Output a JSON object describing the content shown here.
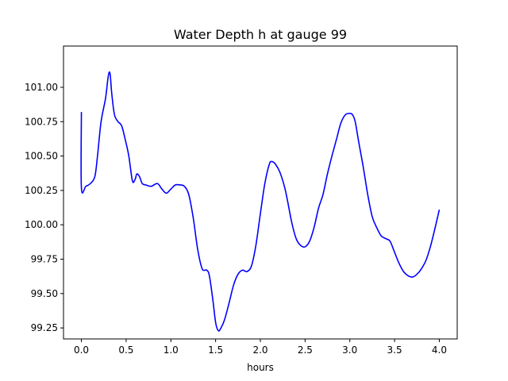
{
  "chart_data": {
    "type": "line",
    "title": "Water Depth h at gauge 99",
    "xlabel": "hours",
    "ylabel": "",
    "xlim": [
      -0.2,
      4.2
    ],
    "ylim": [
      99.17,
      101.3
    ],
    "xticks": [
      0.0,
      0.5,
      1.0,
      1.5,
      2.0,
      2.5,
      3.0,
      3.5,
      4.0
    ],
    "xtick_labels": [
      "0.0",
      "0.5",
      "1.0",
      "1.5",
      "2.0",
      "2.5",
      "3.0",
      "3.5",
      "4.0"
    ],
    "yticks": [
      99.25,
      99.5,
      99.75,
      100.0,
      100.25,
      100.5,
      100.75,
      101.0
    ],
    "ytick_labels": [
      "99.25",
      "99.50",
      "99.75",
      "100.00",
      "100.25",
      "100.50",
      "100.75",
      "101.00"
    ],
    "grid": false,
    "series": [
      {
        "color": "#0000ff",
        "x": [
          0.0,
          0.0,
          0.05,
          0.1,
          0.15,
          0.18,
          0.22,
          0.27,
          0.3,
          0.32,
          0.34,
          0.37,
          0.41,
          0.45,
          0.49,
          0.53,
          0.57,
          0.6,
          0.62,
          0.65,
          0.68,
          0.72,
          0.78,
          0.85,
          0.9,
          0.95,
          1.0,
          1.05,
          1.1,
          1.15,
          1.2,
          1.25,
          1.3,
          1.35,
          1.4,
          1.43,
          1.47,
          1.5,
          1.53,
          1.56,
          1.6,
          1.65,
          1.7,
          1.75,
          1.8,
          1.85,
          1.9,
          1.95,
          2.0,
          2.05,
          2.1,
          2.13,
          2.17,
          2.22,
          2.28,
          2.35,
          2.4,
          2.45,
          2.5,
          2.55,
          2.6,
          2.65,
          2.7,
          2.75,
          2.8,
          2.85,
          2.9,
          2.95,
          3.0,
          3.03,
          3.06,
          3.1,
          3.15,
          3.2,
          3.25,
          3.3,
          3.35,
          3.4,
          3.45,
          3.5,
          3.55,
          3.6,
          3.65,
          3.7,
          3.75,
          3.8,
          3.85,
          3.9,
          3.95,
          4.0
        ],
        "y": [
          100.82,
          100.27,
          100.28,
          100.3,
          100.35,
          100.5,
          100.75,
          100.92,
          101.08,
          101.1,
          100.95,
          100.8,
          100.75,
          100.72,
          100.62,
          100.5,
          100.32,
          100.33,
          100.37,
          100.35,
          100.3,
          100.29,
          100.28,
          100.3,
          100.26,
          100.23,
          100.26,
          100.29,
          100.29,
          100.28,
          100.22,
          100.05,
          99.82,
          99.68,
          99.67,
          99.63,
          99.45,
          99.29,
          99.23,
          99.25,
          99.31,
          99.43,
          99.56,
          99.64,
          99.67,
          99.66,
          99.7,
          99.85,
          100.08,
          100.3,
          100.44,
          100.46,
          100.44,
          100.38,
          100.25,
          100.02,
          99.9,
          99.85,
          99.84,
          99.88,
          99.98,
          100.12,
          100.22,
          100.37,
          100.5,
          100.62,
          100.74,
          100.8,
          100.81,
          100.8,
          100.75,
          100.6,
          100.42,
          100.22,
          100.06,
          99.98,
          99.92,
          99.9,
          99.88,
          99.8,
          99.72,
          99.66,
          99.63,
          99.62,
          99.64,
          99.68,
          99.74,
          99.84,
          99.97,
          100.11
        ]
      }
    ]
  }
}
